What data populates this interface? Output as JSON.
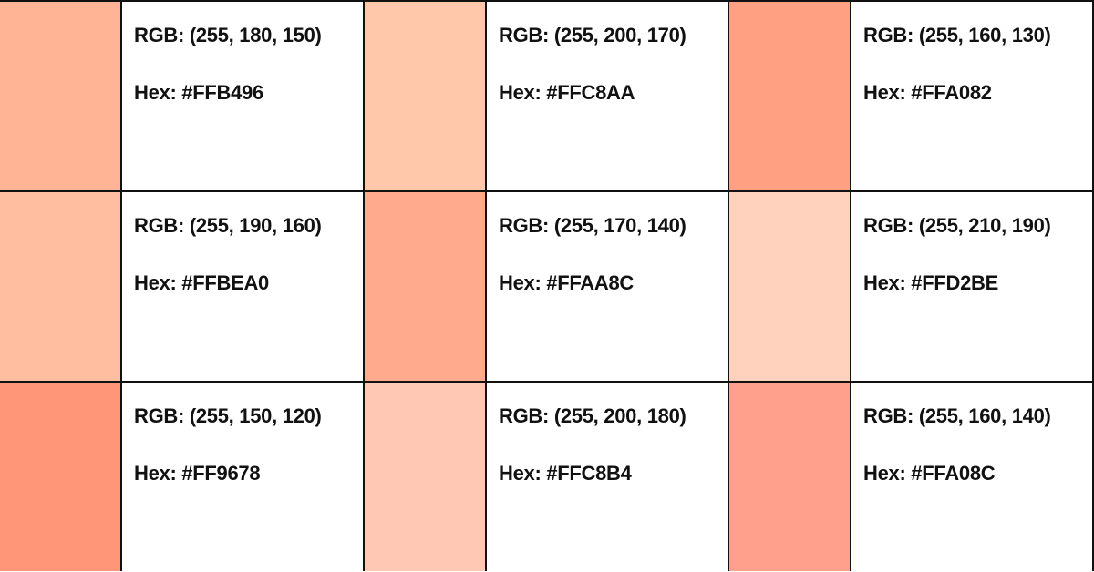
{
  "swatches": [
    {
      "rgb": "RGB: (255, 180, 150)",
      "hex": "Hex: #FFB496",
      "color": "#FFB496"
    },
    {
      "rgb": "RGB: (255, 200, 170)",
      "hex": "Hex: #FFC8AA",
      "color": "#FFC8AA"
    },
    {
      "rgb": "RGB: (255, 160, 130)",
      "hex": "Hex: #FFA082",
      "color": "#FFA082"
    },
    {
      "rgb": "RGB: (255, 190, 160)",
      "hex": "Hex: #FFBEA0",
      "color": "#FFBEA0"
    },
    {
      "rgb": "RGB: (255, 170, 140)",
      "hex": "Hex: #FFAA8C",
      "color": "#FFAA8C"
    },
    {
      "rgb": "RGB: (255, 210, 190)",
      "hex": "Hex: #FFD2BE",
      "color": "#FFD2BE"
    },
    {
      "rgb": "RGB: (255, 150, 120)",
      "hex": "Hex: #FF9678",
      "color": "#FF9678"
    },
    {
      "rgb": "RGB: (255, 200, 180)",
      "hex": "Hex: #FFC8B4",
      "color": "#FFC8B4"
    },
    {
      "rgb": "RGB: (255, 160, 140)",
      "hex": "Hex: #FFA08C",
      "color": "#FFA08C"
    }
  ]
}
